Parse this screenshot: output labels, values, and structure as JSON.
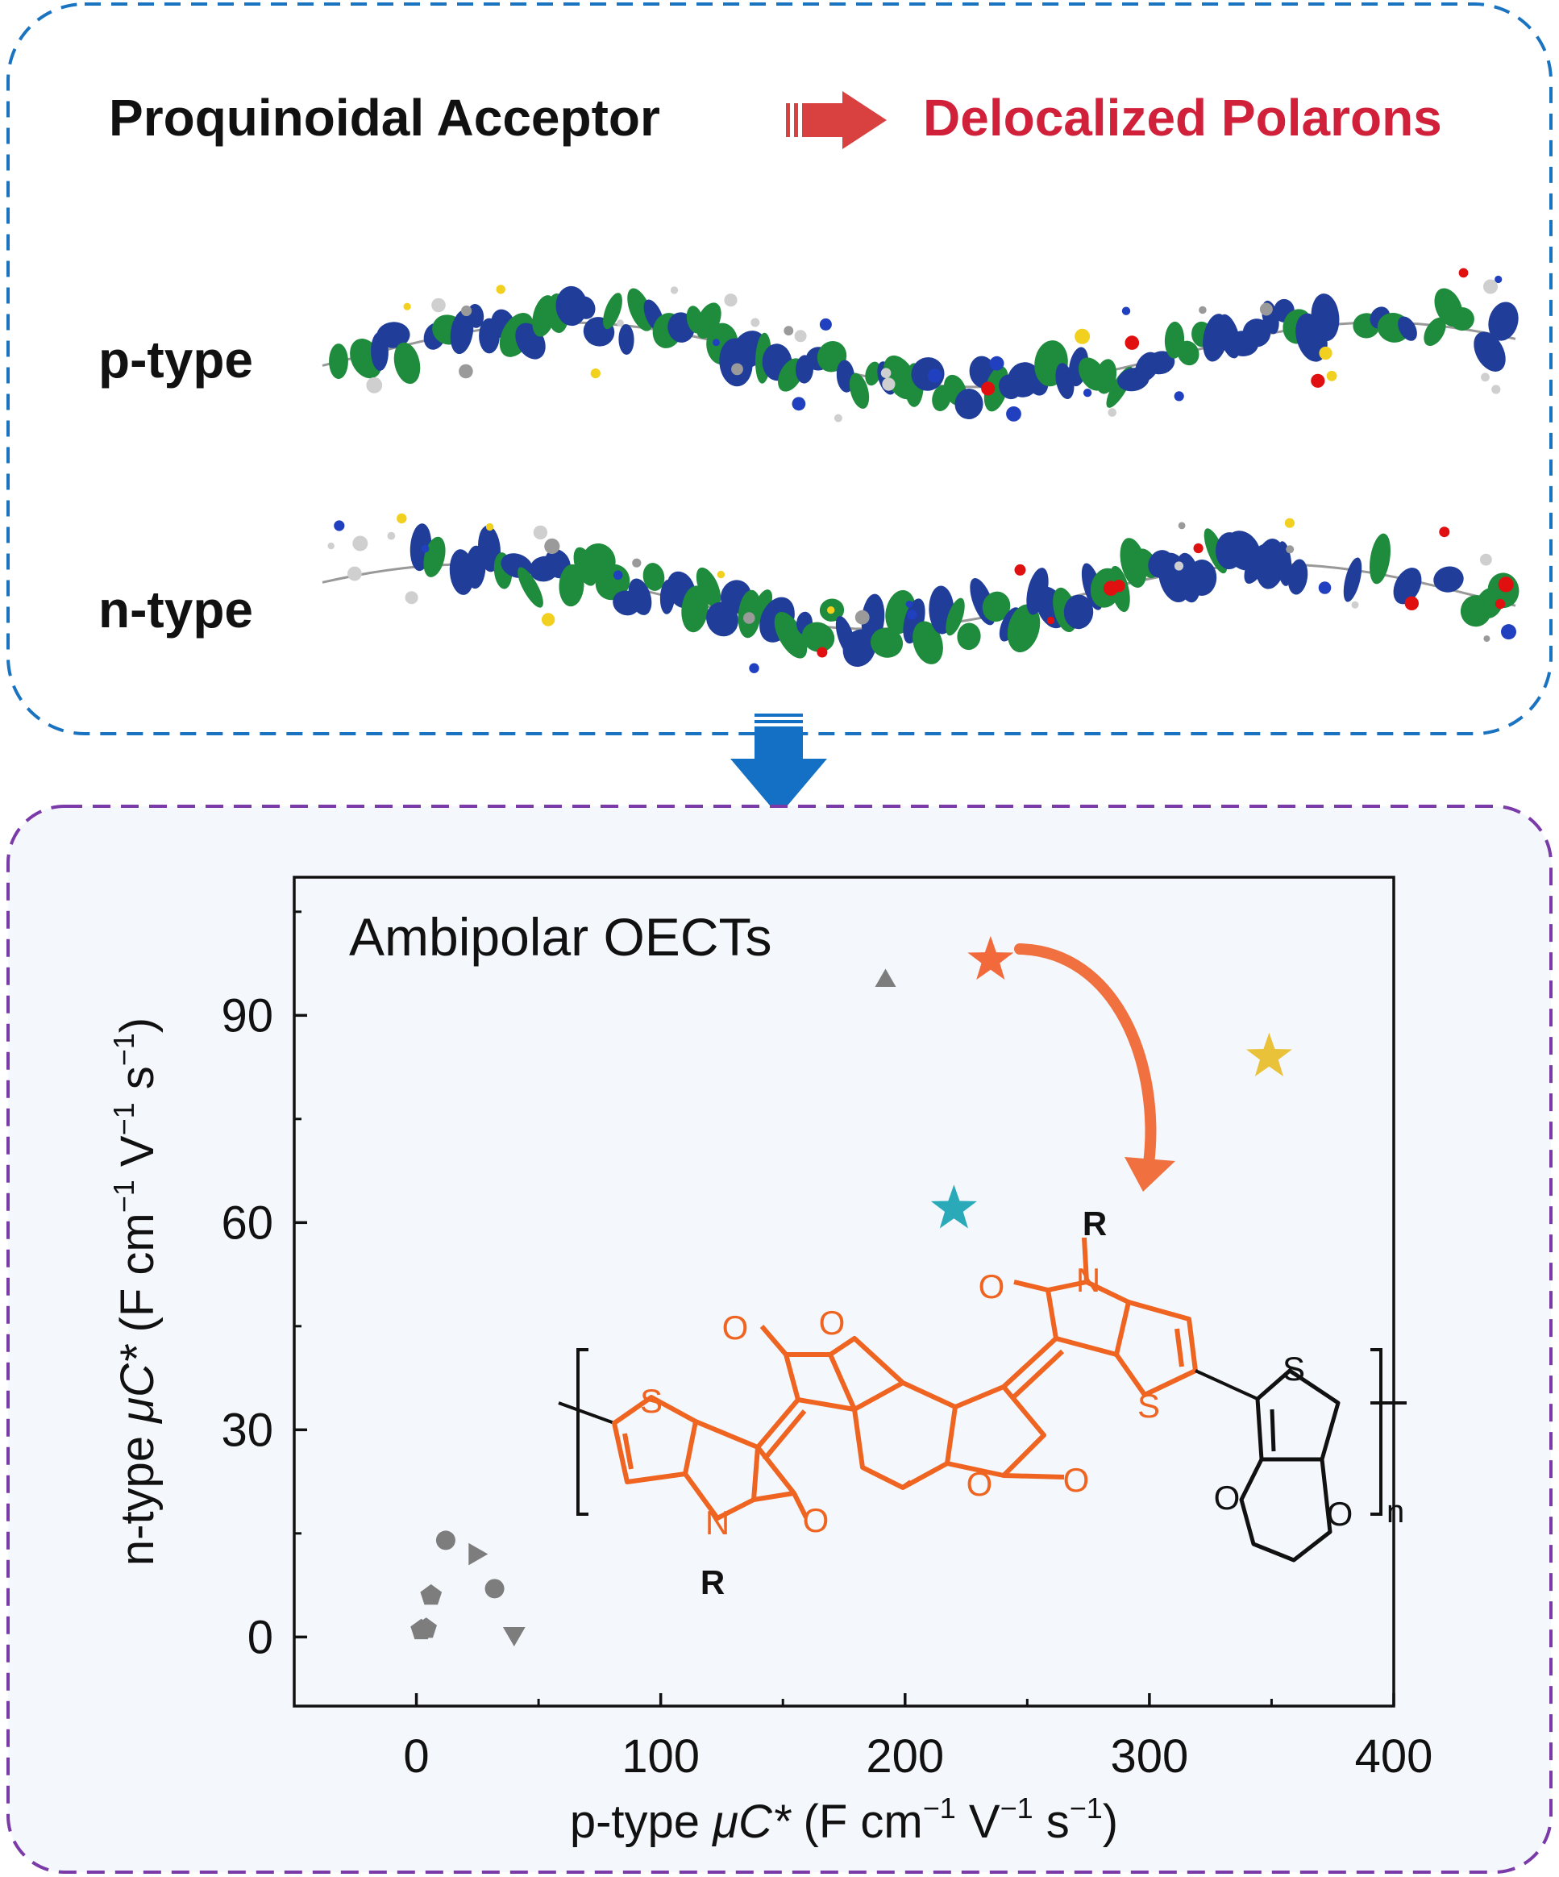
{
  "header": {
    "left": "Proquinoidal Acceptor",
    "right": "Delocalized Polarons"
  },
  "orbitals": {
    "p_label": "p-type",
    "n_label": "n-type"
  },
  "colors": {
    "top_border": "#1a73c0",
    "bottom_border": "#7a3aa8",
    "bottom_fill": "#f4f7fc",
    "red_text": "#d0203a",
    "arrow_red": "#d94141",
    "arrow_blue": "#1470c4",
    "lobe_blue": "#1f3d99",
    "lobe_green": "#1e8c3c",
    "molecule_orange": "#ee6420",
    "gray_marker": "#7d7d7d",
    "star_orange": "#f26a3b",
    "star_yellow": "#e9c23a",
    "star_teal": "#2aa9b9"
  },
  "chart_data": {
    "type": "scatter",
    "title": "Ambipolar OECTs",
    "xlabel_parts": [
      "p-type ",
      "μC*",
      " (F cm",
      "−1",
      " V",
      "−1",
      " s",
      "−1",
      ")"
    ],
    "ylabel_parts": [
      "n-type ",
      "μC*",
      " (F cm",
      "−1",
      " V",
      "−1",
      " s",
      "−1",
      ")"
    ],
    "xlim": [
      -50,
      400
    ],
    "ylim": [
      -10,
      110
    ],
    "xticks": [
      "0",
      "100",
      "200",
      "300",
      "400"
    ],
    "xtick_values": [
      0,
      100,
      200,
      300,
      400
    ],
    "yticks": [
      "0",
      "30",
      "60",
      "90"
    ],
    "ytick_values": [
      0,
      30,
      60,
      90
    ],
    "grid": false,
    "series": [
      {
        "marker": "star",
        "color": "#f26a3b",
        "points": [
          [
            235,
            98
          ]
        ]
      },
      {
        "marker": "star",
        "color": "#e9c23a",
        "points": [
          [
            349,
            84
          ]
        ]
      },
      {
        "marker": "star",
        "color": "#2aa9b9",
        "points": [
          [
            220,
            62
          ]
        ]
      },
      {
        "marker": "triangle-up",
        "color": "#7d7d7d",
        "points": [
          [
            192,
            95
          ]
        ]
      },
      {
        "marker": "circle",
        "color": "#7d7d7d",
        "points": [
          [
            12,
            14
          ],
          [
            32,
            7
          ]
        ]
      },
      {
        "marker": "triangle-right",
        "color": "#7d7d7d",
        "points": [
          [
            24,
            12
          ]
        ]
      },
      {
        "marker": "pentagon",
        "color": "#7d7d7d",
        "points": [
          [
            6,
            6
          ],
          [
            2,
            1
          ],
          [
            4,
            1.2
          ]
        ]
      },
      {
        "marker": "triangle-down",
        "color": "#7d7d7d",
        "points": [
          [
            40,
            0.5
          ]
        ]
      }
    ],
    "annotation_arrow": {
      "from": [
        248,
        98
      ],
      "to": [
        290,
        65
      ]
    }
  },
  "structure": {
    "atoms": {
      "S": "S",
      "O": "O",
      "N": "N",
      "R": "R",
      "n": "n"
    }
  }
}
